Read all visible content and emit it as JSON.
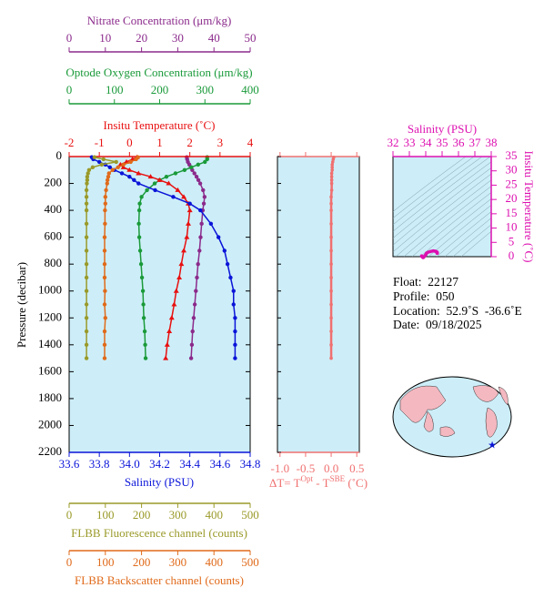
{
  "chart_data": [
    {
      "type": "profile",
      "ylabel": "Pressure (decibar)",
      "ylim": [
        0,
        2200
      ],
      "yticks": [
        0,
        200,
        400,
        600,
        800,
        1000,
        1200,
        1400,
        1600,
        1800,
        2000,
        2200
      ],
      "pressure": [
        5,
        20,
        40,
        60,
        80,
        100,
        125,
        150,
        175,
        200,
        250,
        300,
        350,
        400,
        500,
        600,
        700,
        800,
        900,
        1000,
        1100,
        1200,
        1300,
        1400,
        1500
      ],
      "axes": [
        {
          "label": "Nitrate Concentration (μm/kg)",
          "color": "#8b2a8b",
          "xlim": [
            0,
            50
          ],
          "xticks": [
            0,
            10,
            20,
            30,
            40,
            50
          ],
          "values": [
            32.5,
            32.6,
            32.8,
            33.2,
            33.6,
            34.0,
            34.6,
            35.2,
            35.7,
            36.2,
            37.0,
            37.4,
            37.2,
            36.9,
            36.6,
            36.3,
            36.0,
            35.6,
            35.3,
            35.0,
            34.7,
            34.4,
            34.1,
            33.9,
            33.7
          ]
        },
        {
          "label": "Optode Oxygen Concentration (μm/kg)",
          "color": "#1a9a3a",
          "xlim": [
            0,
            400
          ],
          "xticks": [
            0,
            100,
            200,
            300,
            400
          ],
          "values": [
            305,
            305,
            300,
            285,
            270,
            255,
            235,
            215,
            200,
            189,
            172,
            160,
            156,
            155,
            154,
            155,
            157,
            159,
            161,
            163,
            164,
            165,
            167,
            168,
            169
          ]
        },
        {
          "label": "Insitu Temperature (˚C)",
          "color": "#e81010",
          "xlim": [
            -2,
            4
          ],
          "xticks": [
            -2,
            -1,
            0,
            1,
            2,
            3,
            4
          ],
          "values": [
            0.25,
            0.1,
            -0.1,
            -0.3,
            -0.2,
            0.0,
            0.3,
            0.7,
            1.0,
            1.3,
            1.6,
            1.8,
            1.95,
            2.0,
            1.95,
            1.9,
            1.8,
            1.72,
            1.65,
            1.55,
            1.48,
            1.4,
            1.32,
            1.25,
            1.2
          ]
        },
        {
          "label": "Salinity (PSU)",
          "color": "#0a14d8",
          "xlim": [
            33.6,
            34.8
          ],
          "xticks": [
            {
              "value": 33.6,
              "label": "33.6"
            },
            {
              "value": 33.8,
              "label": "33.8"
            },
            {
              "value": 34.0,
              "label": "34.0"
            },
            34.2,
            34.4,
            34.6,
            34.8
          ],
          "values": [
            33.75,
            33.76,
            33.8,
            33.84,
            33.87,
            33.9,
            33.95,
            34.0,
            34.03,
            34.06,
            34.17,
            34.29,
            34.4,
            34.47,
            34.54,
            34.59,
            34.63,
            34.65,
            34.67,
            34.69,
            34.69,
            34.7,
            34.7,
            34.7,
            34.7
          ]
        },
        {
          "label": "FLBB Fluorescence channel (counts)",
          "color": "#9a9a2a",
          "xlim": [
            0,
            500
          ],
          "xticks": [
            0,
            100,
            200,
            300,
            400,
            500
          ],
          "values": [
            70,
            95,
            130,
            90,
            65,
            55,
            52,
            50,
            50,
            49,
            48,
            48,
            48,
            48,
            48,
            48,
            48,
            48,
            48,
            48,
            48,
            48,
            48,
            48,
            48
          ]
        },
        {
          "label": "FLBB Backscatter channel (counts)",
          "color": "#e06a1a",
          "xlim": [
            0,
            500
          ],
          "xticks": [
            0,
            100,
            200,
            300,
            400,
            500
          ],
          "values": [
            190,
            185,
            170,
            150,
            135,
            120,
            110,
            108,
            106,
            105,
            102,
            100,
            100,
            99,
            99,
            98,
            98,
            98,
            98,
            99,
            98,
            100,
            98,
            98,
            98
          ]
        }
      ]
    },
    {
      "type": "line",
      "color": "#f07070",
      "xlabel_parts": [
        "ΔT= T",
        "Opt",
        " - T",
        "SBE",
        " (˚C)"
      ],
      "xlim": [
        -1.05,
        0.55
      ],
      "xticks": [
        {
          "value": -1.0,
          "label": "-1.0"
        },
        {
          "value": -0.5,
          "label": "-0.5"
        },
        {
          "value": 0.0,
          "label": "0.0"
        },
        0.5
      ],
      "values": [
        0.05,
        0.04,
        0.03,
        0.02,
        0.02,
        0.02,
        0.01,
        0.01,
        0.01,
        0.01,
        0.01,
        0,
        0,
        0,
        0,
        0,
        0,
        0,
        0,
        0,
        0,
        0,
        0,
        0,
        0
      ]
    },
    {
      "type": "scatter",
      "color": "#dd10b0",
      "xlabel": "Salinity (PSU)",
      "ylabel": "Insitu Temperature (˚C)",
      "xlim": [
        32,
        38
      ],
      "xticks": [
        32,
        33,
        34,
        35,
        36,
        37,
        38
      ],
      "ylim": [
        0,
        35
      ],
      "yticks": [
        0,
        5,
        10,
        15,
        20,
        25,
        30,
        35
      ]
    }
  ],
  "info": {
    "float": "Float:  22127",
    "profile": "Profile:  050",
    "location": "Location:  52.9˚S  -36.6˚E",
    "date": "Date:  09/18/2025"
  }
}
